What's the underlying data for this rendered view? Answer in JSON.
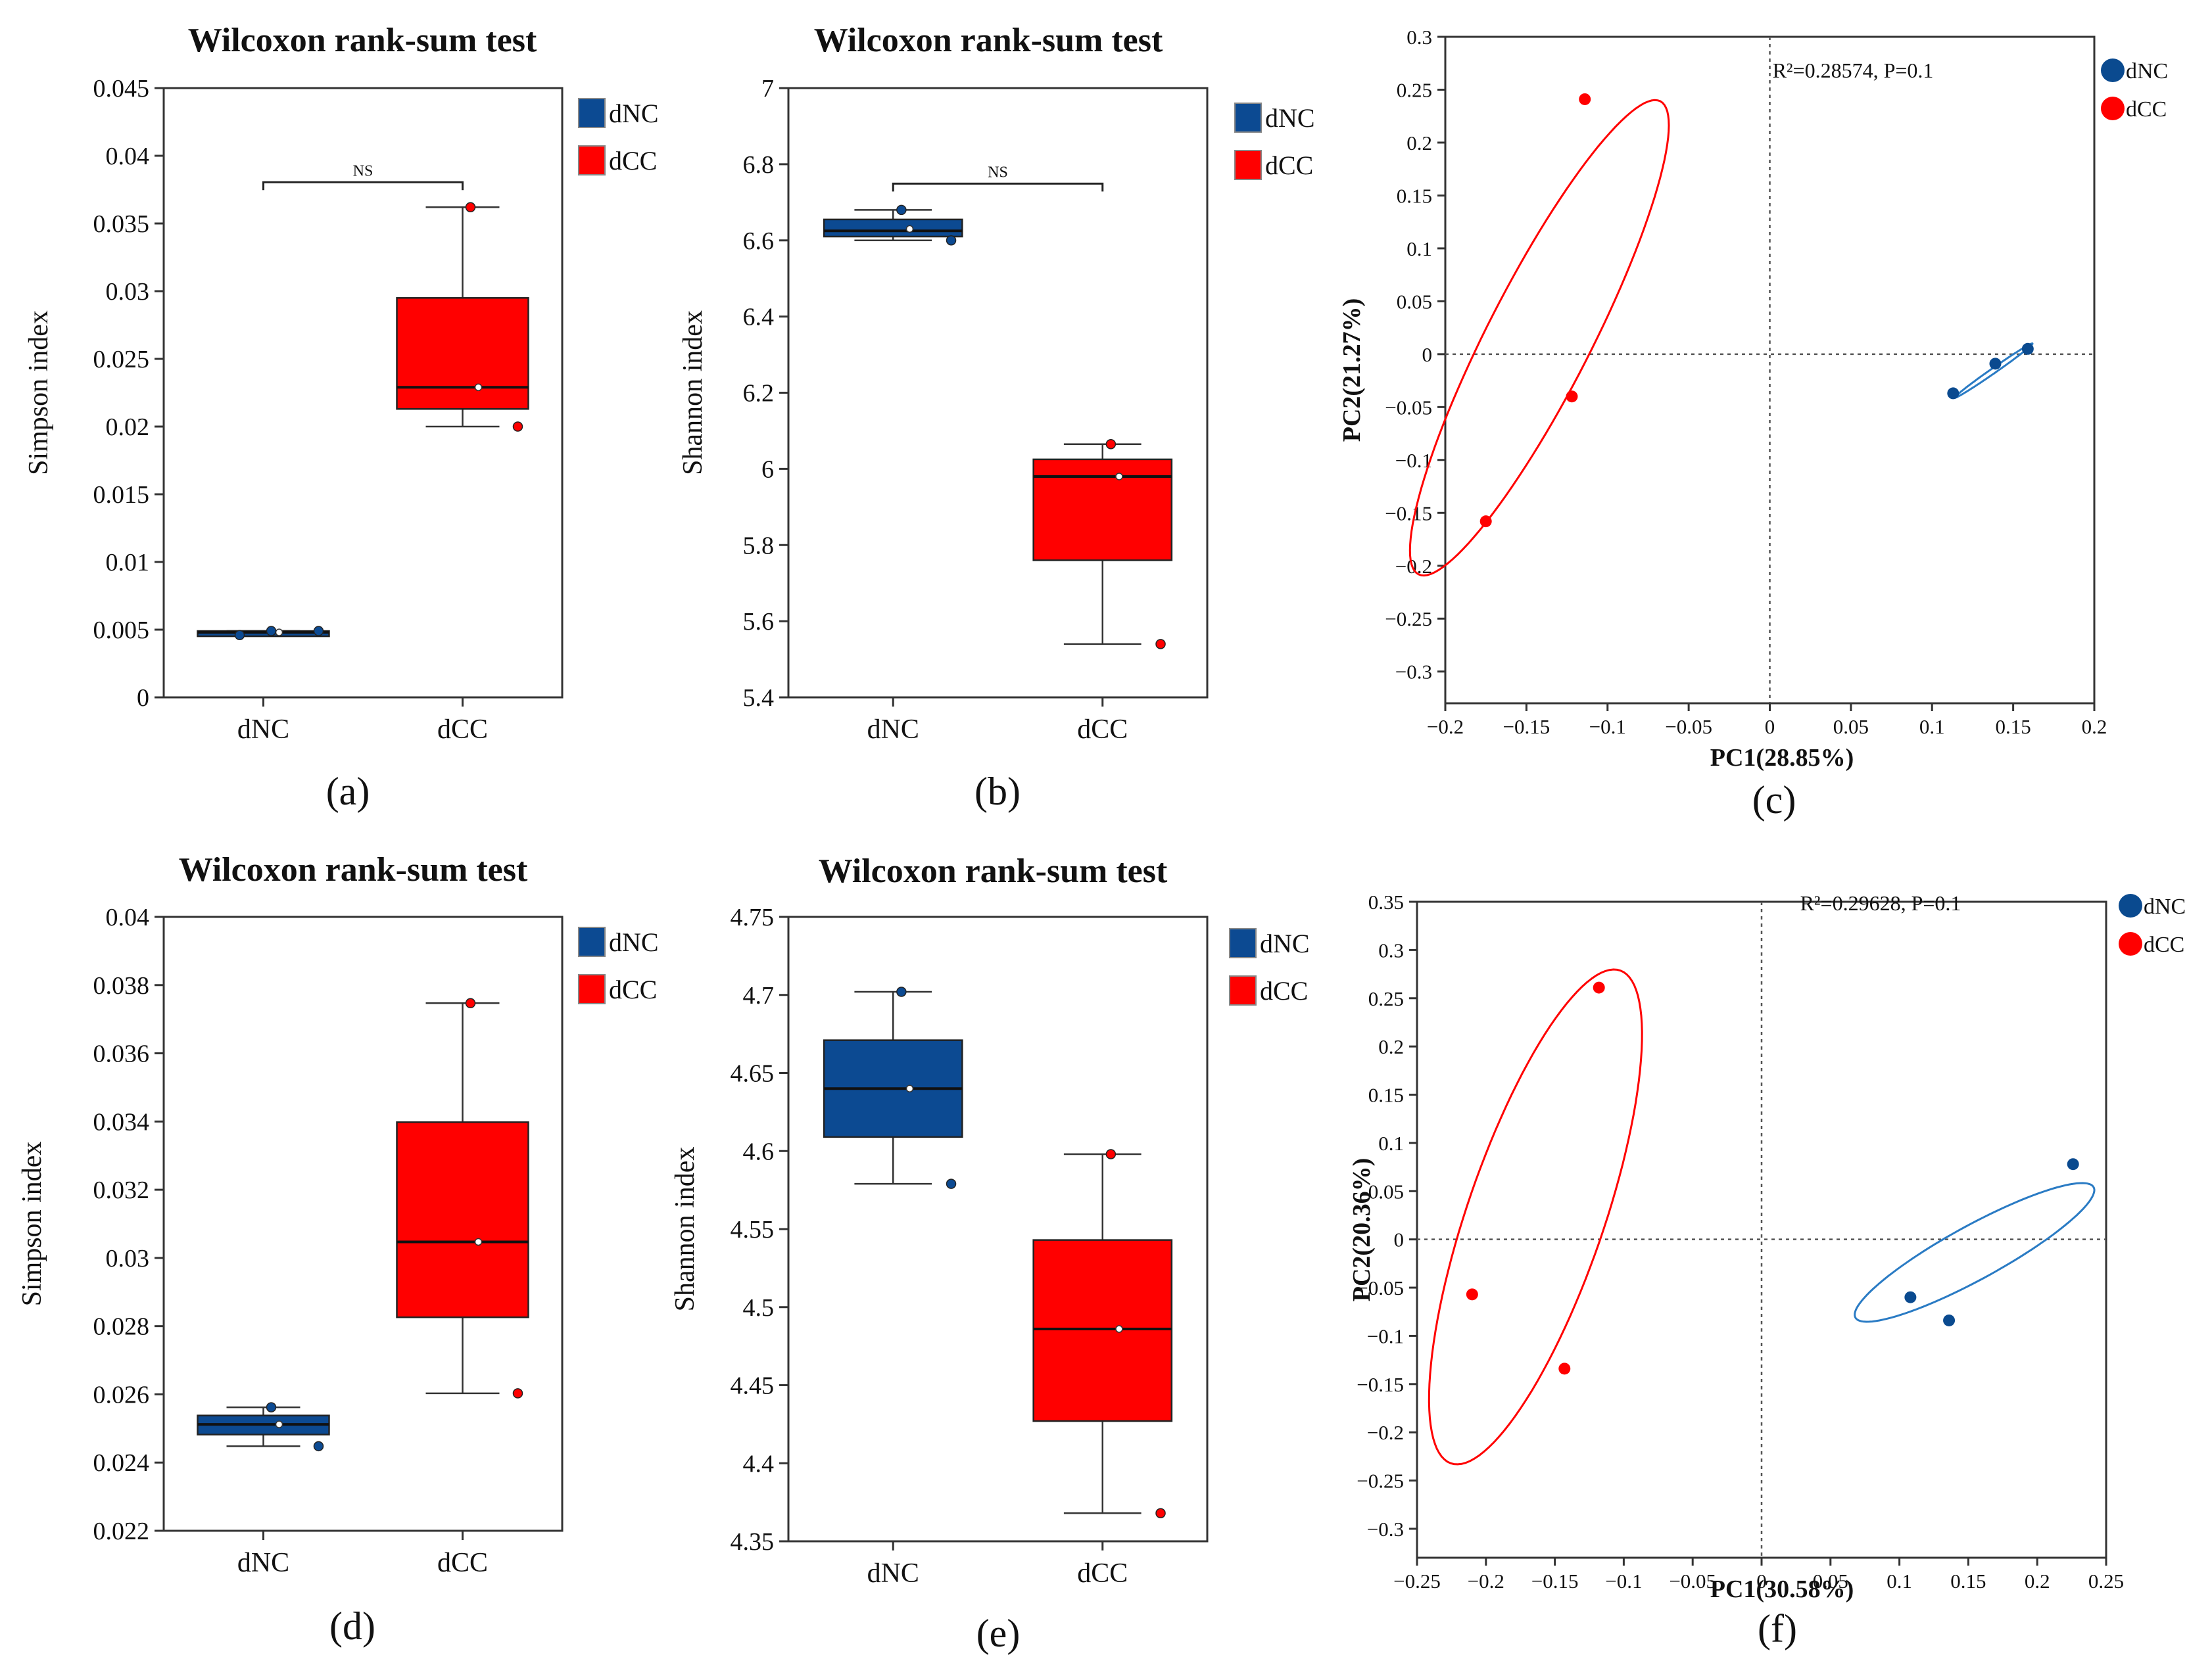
{
  "colors": {
    "dNC": "#0a4a8f",
    "dCC": "#ff0000",
    "dNC_box": "#0c4a92",
    "dCC_box": "#ff0000",
    "dNC_ellipse": "#2a7bc4"
  },
  "chart_data": [
    {
      "type": "box",
      "panel_label": "(a)",
      "title": "Wilcoxon rank-sum test",
      "ylabel": "Simpson index",
      "ylim": [
        0,
        0.045
      ],
      "yticks": [
        "0",
        "0.005",
        "0.01",
        "0.015",
        "0.02",
        "0.025",
        "0.03",
        "0.035",
        "0.04",
        "0.045"
      ],
      "categories": [
        "dNC",
        "dCC"
      ],
      "legend": [
        "dNC",
        "dCC"
      ],
      "significance": "NS",
      "groups": [
        {
          "name": "dNC",
          "min": 0.0046,
          "q1": 0.0047,
          "median": 0.0048,
          "q3": 0.0049,
          "max": 0.0049,
          "mean": 0.0048,
          "points": [
            0.0049,
            0.0049,
            0.0046
          ]
        },
        {
          "name": "dCC",
          "min": 0.02,
          "q1": 0.0213,
          "median": 0.0229,
          "q3": 0.0295,
          "max": 0.0362,
          "mean": 0.0229,
          "points": [
            0.0362,
            0.02
          ]
        }
      ]
    },
    {
      "type": "box",
      "panel_label": "(b)",
      "title": "Wilcoxon rank-sum test",
      "ylabel": "Shannon index",
      "ylim": [
        5.4,
        7
      ],
      "yticks": [
        "5.4",
        "5.6",
        "5.8",
        "6",
        "6.2",
        "6.4",
        "6.6",
        "6.8",
        "7"
      ],
      "categories": [
        "dNC",
        "dCC"
      ],
      "legend": [
        "dNC",
        "dCC"
      ],
      "significance": "NS",
      "groups": [
        {
          "name": "dNC",
          "min": 6.6,
          "q1": 6.61,
          "median": 6.625,
          "q3": 6.655,
          "max": 6.68,
          "mean": 6.63,
          "points": [
            6.68,
            6.6
          ]
        },
        {
          "name": "dCC",
          "min": 5.54,
          "q1": 5.76,
          "median": 5.98,
          "q3": 6.025,
          "max": 6.065,
          "mean": 5.98,
          "points": [
            6.065,
            5.54
          ]
        }
      ]
    },
    {
      "type": "scatter",
      "panel_label": "(c)",
      "annotation": "R²=0.28574, P=0.1",
      "xlabel": "PC1(28.85%)",
      "ylabel": "PC2(21.27%)",
      "xlim": [
        -0.2,
        0.2
      ],
      "ylim": [
        -0.33,
        0.3
      ],
      "xticks": [
        -0.2,
        -0.15,
        -0.1,
        -0.05,
        0,
        0.05,
        0.1,
        0.15,
        0.2
      ],
      "xtick_labels": [
        "−0.2",
        "−0.15",
        "−0.1",
        "−0.05",
        "0",
        "0.05",
        "0.1",
        "0.15",
        "0.2"
      ],
      "yticks": [
        -0.3,
        -0.25,
        -0.2,
        -0.15,
        -0.1,
        -0.05,
        0,
        0.05,
        0.1,
        0.15,
        0.2,
        0.25,
        0.3
      ],
      "ytick_labels": [
        "−0.3",
        "−0.25",
        "−0.2",
        "−0.15",
        "−0.1",
        "−0.05",
        "0",
        "0.05",
        "0.1",
        "0.15",
        "0.2",
        "0.25",
        "0.3"
      ],
      "legend": [
        "dNC",
        "dCC"
      ],
      "series": [
        {
          "name": "dNC",
          "points": [
            [
              0.113,
              -0.037
            ],
            [
              0.139,
              -0.009
            ],
            [
              0.159,
              0.005
            ]
          ],
          "ellipse": {
            "cx": 0.138,
            "cy": -0.0155,
            "rx": 0.035,
            "ry": 0.002,
            "angle": 47
          }
        },
        {
          "name": "dCC",
          "points": [
            [
              -0.114,
              0.241
            ],
            [
              -0.122,
              -0.04
            ],
            [
              -0.175,
              -0.158
            ]
          ],
          "ellipse": {
            "cx": -0.142,
            "cy": 0.0155,
            "rx": 0.236,
            "ry": 0.034,
            "angle": 72
          }
        }
      ]
    },
    {
      "type": "box",
      "panel_label": "(d)",
      "title": "Wilcoxon rank-sum test",
      "ylabel": "Simpson index",
      "ylim": [
        0.022,
        0.04
      ],
      "yticks": [
        "0.022",
        "0.024",
        "0.026",
        "0.028",
        "0.03",
        "0.032",
        "0.034",
        "0.036",
        "0.038",
        "0.04"
      ],
      "categories": [
        "dNC",
        "dCC"
      ],
      "legend": [
        "dNC",
        "dCC"
      ],
      "significance": "",
      "groups": [
        {
          "name": "dNC",
          "min": 0.02448,
          "q1": 0.02482,
          "median": 0.02512,
          "q3": 0.02538,
          "max": 0.02562,
          "mean": 0.02512,
          "points": [
            0.02562,
            0.02448
          ]
        },
        {
          "name": "dCC",
          "min": 0.02603,
          "q1": 0.02826,
          "median": 0.03047,
          "q3": 0.03398,
          "max": 0.03747,
          "mean": 0.03047,
          "points": [
            0.03747,
            0.02603
          ]
        }
      ]
    },
    {
      "type": "box",
      "panel_label": "(e)",
      "title": "Wilcoxon rank-sum test",
      "ylabel": "Shannon index",
      "ylim": [
        4.35,
        4.75
      ],
      "yticks": [
        "4.35",
        "4.4",
        "4.45",
        "4.5",
        "4.55",
        "4.6",
        "4.65",
        "4.7",
        "4.75"
      ],
      "categories": [
        "dNC",
        "dCC"
      ],
      "legend": [
        "dNC",
        "dCC"
      ],
      "significance": "",
      "groups": [
        {
          "name": "dNC",
          "min": 4.579,
          "q1": 4.609,
          "median": 4.64,
          "q3": 4.671,
          "max": 4.702,
          "mean": 4.64,
          "points": [
            4.702,
            4.579
          ]
        },
        {
          "name": "dCC",
          "min": 4.368,
          "q1": 4.427,
          "median": 4.486,
          "q3": 4.543,
          "max": 4.598,
          "mean": 4.486,
          "points": [
            4.598,
            4.368
          ]
        }
      ]
    },
    {
      "type": "scatter",
      "panel_label": "(f)",
      "annotation": "R²=0.29628, P=0.1",
      "xlabel": "PC1(30.58%)",
      "ylabel": "PC2(20.36%)",
      "xlim": [
        -0.25,
        0.25
      ],
      "ylim": [
        -0.33,
        0.35
      ],
      "xticks": [
        -0.25,
        -0.2,
        -0.15,
        -0.1,
        -0.05,
        0,
        0.05,
        0.1,
        0.15,
        0.2,
        0.25
      ],
      "xtick_labels": [
        "−0.25",
        "−0.2",
        "−0.15",
        "−0.1",
        "−0.05",
        "0",
        "0.05",
        "0.1",
        "0.15",
        "0.2",
        "0.25"
      ],
      "yticks": [
        -0.3,
        -0.25,
        -0.2,
        -0.15,
        -0.1,
        -0.05,
        0,
        0.05,
        0.1,
        0.15,
        0.2,
        0.25,
        0.3,
        0.35
      ],
      "ytick_labels": [
        "−0.3",
        "−0.25",
        "−0.2",
        "−0.15",
        "−0.1",
        "−0.05",
        "0",
        "0.05",
        "0.1",
        "0.15",
        "0.2",
        "0.25",
        "0.3",
        "0.35"
      ],
      "legend": [
        "dNC",
        "dCC"
      ],
      "series": [
        {
          "name": "dNC",
          "points": [
            [
              0.226,
              0.078
            ],
            [
              0.108,
              -0.06
            ],
            [
              0.136,
              -0.084
            ]
          ],
          "ellipse": {
            "cx": 0.1545,
            "cy": -0.0135,
            "rx": 0.11,
            "ry": 0.025,
            "angle": 39
          }
        },
        {
          "name": "dCC",
          "points": [
            [
              -0.118,
              0.261
            ],
            [
              -0.21,
              -0.057
            ],
            [
              -0.143,
              -0.134
            ]
          ],
          "ellipse": {
            "cx": -0.164,
            "cy": 0.0233,
            "rx": 0.263,
            "ry": 0.051,
            "angle": 77
          }
        }
      ]
    }
  ]
}
